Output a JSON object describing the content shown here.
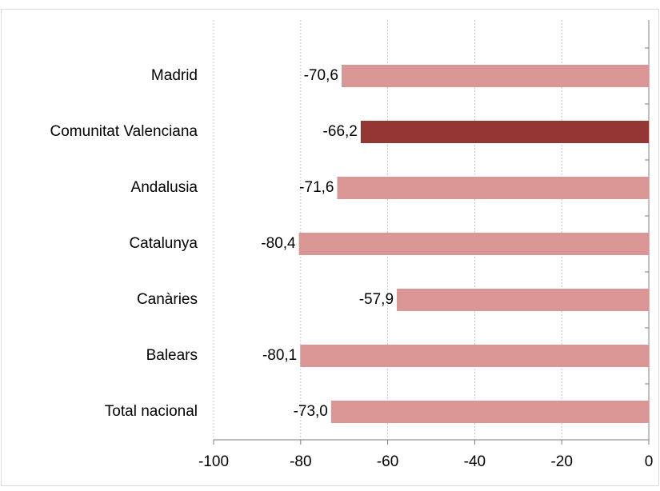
{
  "chart_data": {
    "type": "barh",
    "categories": [
      "Madrid",
      "Comunitat Valenciana",
      "Andalusia",
      "Catalunya",
      "Canàries",
      "Balears",
      "Total nacional"
    ],
    "values": [
      -70.6,
      -66.2,
      -71.6,
      -80.4,
      -57.9,
      -80.1,
      -73.0
    ],
    "value_labels": [
      "-70,6",
      "-66,2",
      "-71,6",
      "-80,4",
      "-57,9",
      "-80,1",
      "-73,0"
    ],
    "colors": [
      "#d99694",
      "#943634",
      "#d99694",
      "#d99694",
      "#d99694",
      "#d99694",
      "#d99694"
    ],
    "xlim": [
      -100,
      0
    ],
    "xticks": [
      -100,
      -80,
      -60,
      -40,
      -20,
      0
    ],
    "grid": true
  }
}
